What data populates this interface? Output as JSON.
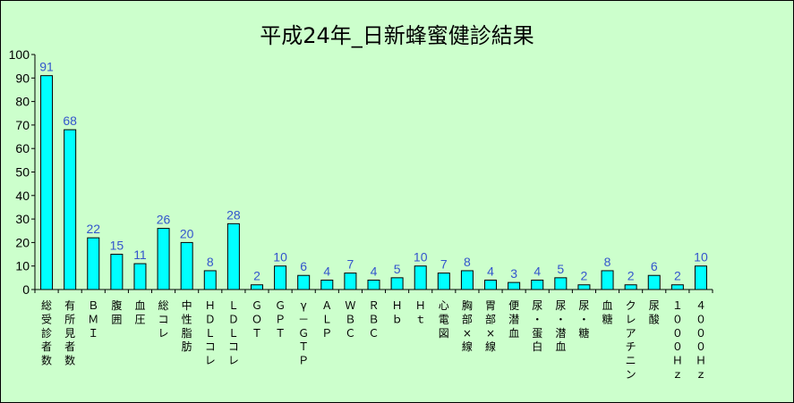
{
  "chart_data": {
    "type": "bar",
    "title": "平成24年_日新蜂蜜健診結果",
    "xlabel": "",
    "ylabel": "",
    "ylim": [
      0,
      100
    ],
    "yticks": [
      "0",
      "10",
      "20",
      "30",
      "40",
      "50",
      "60",
      "70",
      "80",
      "90",
      "100"
    ],
    "grid": false,
    "legend": "none",
    "categories": [
      "総受診者数",
      "有所見者数",
      "ＢＭＩ",
      "腹囲",
      "血圧",
      "総コレ",
      "中性脂肪",
      "ＨＤＬコレ",
      "ＬＤＬコレ",
      "ＧＯＴ",
      "ＧＰＴ",
      "γ－ＧＴＰ",
      "ＡＬＰ",
      "ＷＢＣ",
      "ＲＢＣ",
      "Ｈｂ",
      "Ｈｔ",
      "心電図",
      "胸部×線",
      "胃部×線",
      "便潜血",
      "尿・蛋白",
      "尿・潜血",
      "尿・糖",
      "血糖",
      "クレアチニン",
      "尿酸",
      "１０００Ｈｚ",
      "４０００Ｈｚ"
    ],
    "values": [
      91,
      68,
      22,
      15,
      11,
      26,
      20,
      8,
      28,
      2,
      10,
      6,
      4,
      7,
      4,
      5,
      10,
      7,
      8,
      4,
      3,
      4,
      5,
      2,
      8,
      2,
      6,
      2,
      10
    ],
    "colors": {
      "bar": "#00ffff",
      "bar_border": "#000000",
      "data_label": "#3355cc",
      "background": "#ccffcc"
    }
  }
}
